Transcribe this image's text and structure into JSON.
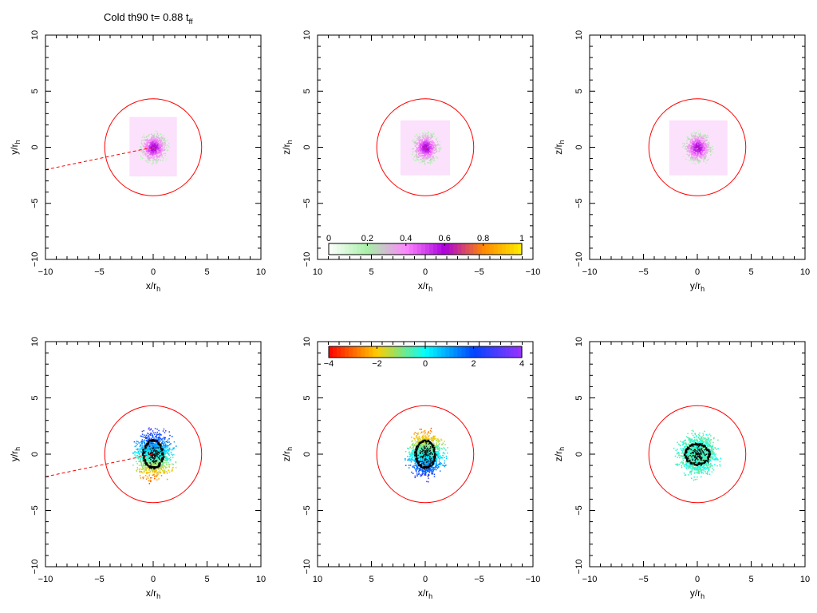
{
  "title": {
    "text": "Cold th90 t= 0.88 t",
    "sub": "ff"
  },
  "colorbars": [
    {
      "panel": 1,
      "ticks": [
        "0",
        "0.2",
        "0.4",
        "0.6",
        "0.8",
        "1"
      ],
      "range": [
        0,
        1
      ],
      "palette": [
        "#ffffff",
        "#a8f0a8",
        "#ff88ff",
        "#aa00dd",
        "#ff8800",
        "#ffee00"
      ]
    },
    {
      "panel": 4,
      "ticks": [
        "−4",
        "−2",
        "0",
        "2",
        "4"
      ],
      "range": [
        -4,
        4
      ],
      "palette": [
        "#ff0000",
        "#ffcc00",
        "#00ffff",
        "#0044ff",
        "#9933ff"
      ]
    }
  ],
  "chart_data": [
    {
      "type": "scatter",
      "xlabel": "x/r",
      "xlabel_sub": "h",
      "ylabel": "y/r",
      "ylabel_sub": "h",
      "xlim": [
        -10,
        10
      ],
      "ylim": [
        -10,
        10
      ],
      "xticks": [
        "−10",
        "−5",
        "0",
        "5",
        "10"
      ],
      "yticks": [
        "−10",
        "−5",
        "0",
        "5",
        "10"
      ],
      "circle": {
        "center": [
          0,
          0
        ],
        "radius": 4.5,
        "color": "#ff0000"
      },
      "dashed_line": {
        "from": [
          -10,
          -2.0
        ],
        "to": [
          0,
          0
        ],
        "color": "#ff0000"
      },
      "cloud": {
        "center": [
          0,
          0
        ],
        "box": [
          -2.2,
          2.2,
          -2.6,
          2.7
        ],
        "core_radius": 1.3,
        "color_mode": "density"
      },
      "rings": []
    },
    {
      "type": "scatter",
      "xlabel": "x/r",
      "xlabel_sub": "h",
      "ylabel": "z/r",
      "ylabel_sub": "h",
      "xlim": [
        10,
        -10
      ],
      "ylim": [
        -10,
        10
      ],
      "xticks": [
        "10",
        "5",
        "0",
        "−5",
        "−10"
      ],
      "yticks": [
        "−10",
        "−5",
        "0",
        "5",
        "10"
      ],
      "circle": {
        "center": [
          0,
          0
        ],
        "radius": 4.5,
        "color": "#ff0000"
      },
      "dashed_line": null,
      "cloud": {
        "center": [
          0,
          0
        ],
        "box": [
          -2.3,
          2.3,
          -2.5,
          2.4
        ],
        "core_radius": 1.3,
        "color_mode": "density"
      },
      "rings": []
    },
    {
      "type": "scatter",
      "xlabel": "y/r",
      "xlabel_sub": "h",
      "ylabel": "z/r",
      "ylabel_sub": "h",
      "xlim": [
        -10,
        10
      ],
      "ylim": [
        -10,
        10
      ],
      "xticks": [
        "−10",
        "−5",
        "0",
        "5",
        "10"
      ],
      "yticks": [
        "−10",
        "−5",
        "0",
        "5",
        "10"
      ],
      "circle": {
        "center": [
          0,
          0
        ],
        "radius": 4.5,
        "color": "#ff0000"
      },
      "dashed_line": null,
      "cloud": {
        "center": [
          0,
          0
        ],
        "box": [
          -2.6,
          2.8,
          -2.5,
          2.4
        ],
        "core_radius": 1.3,
        "color_mode": "density"
      },
      "rings": []
    },
    {
      "type": "scatter",
      "xlabel": "x/r",
      "xlabel_sub": "h",
      "ylabel": "y/r",
      "ylabel_sub": "h",
      "xlim": [
        -10,
        10
      ],
      "ylim": [
        -10,
        10
      ],
      "xticks": [
        "−10",
        "−5",
        "0",
        "5",
        "10"
      ],
      "yticks": [
        "−10",
        "−5",
        "0",
        "5",
        "10"
      ],
      "circle": {
        "center": [
          0,
          0
        ],
        "radius": 4.5,
        "color": "#ff0000"
      },
      "dashed_line": {
        "from": [
          -10,
          -2.0
        ],
        "to": [
          0,
          0
        ],
        "color": "#ff0000"
      },
      "cloud": {
        "center": [
          0,
          0
        ],
        "radius": [
          2.2,
          2.5
        ],
        "color_mode": "velocity-y"
      },
      "rings": [
        {
          "center": [
            0,
            0
          ],
          "rx": 0.9,
          "ry": 1.2
        }
      ]
    },
    {
      "type": "scatter",
      "xlabel": "x/r",
      "xlabel_sub": "h",
      "ylabel": "z/r",
      "ylabel_sub": "h",
      "xlim": [
        10,
        -10
      ],
      "ylim": [
        -10,
        10
      ],
      "xticks": [
        "10",
        "5",
        "0",
        "−5",
        "−10"
      ],
      "yticks": [
        "−10",
        "−5",
        "0",
        "5",
        "10"
      ],
      "circle": {
        "center": [
          0,
          0
        ],
        "radius": 4.5,
        "color": "#ff0000"
      },
      "dashed_line": null,
      "cloud": {
        "center": [
          0,
          0
        ],
        "radius": [
          2.0,
          2.4
        ],
        "color_mode": "velocity-z"
      },
      "rings": [
        {
          "center": [
            0,
            0
          ],
          "rx": 0.9,
          "ry": 1.2
        }
      ]
    },
    {
      "type": "scatter",
      "xlabel": "y/r",
      "xlabel_sub": "h",
      "ylabel": "z/r",
      "ylabel_sub": "h",
      "xlim": [
        -10,
        10
      ],
      "ylim": [
        -10,
        10
      ],
      "xticks": [
        "−10",
        "−5",
        "0",
        "5",
        "10"
      ],
      "yticks": [
        "−10",
        "−5",
        "0",
        "5",
        "10"
      ],
      "circle": {
        "center": [
          0,
          0
        ],
        "radius": 4.5,
        "color": "#ff0000"
      },
      "dashed_line": null,
      "cloud": {
        "center": [
          0,
          0
        ],
        "radius": [
          2.2,
          2.2
        ],
        "color_mode": "velocity-flat"
      },
      "rings": [
        {
          "center": [
            0,
            0
          ],
          "rx": 1.1,
          "ry": 0.9
        }
      ]
    }
  ]
}
